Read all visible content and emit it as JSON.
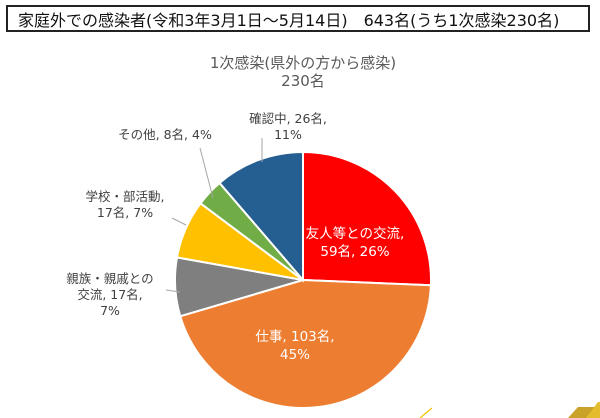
{
  "header": {
    "title": "家庭外での感染者(令和3年3月1日～5月14日)　643名(うち1次感染230名)"
  },
  "chart_data": {
    "type": "pie",
    "title": "1次感染(県外の方から感染)",
    "subtitle": "230名",
    "slices": [
      {
        "name": "友人等との交流",
        "count": 59,
        "percent": 26,
        "color": "#FF0000",
        "label_lines": [
          "友人等との交流,",
          "59名, 26%"
        ]
      },
      {
        "name": "仕事",
        "count": 103,
        "percent": 45,
        "color": "#ED7D31",
        "label_lines": [
          "仕事, 103名,",
          "45%"
        ]
      },
      {
        "name": "親族・親戚との交流",
        "count": 17,
        "percent": 7,
        "color": "#7F7F7F",
        "label_lines": [
          "親族・親戚との",
          "交流, 17名,",
          "7%"
        ]
      },
      {
        "name": "学校・部活動",
        "count": 17,
        "percent": 7,
        "color": "#FFC000",
        "label_lines": [
          "学校・部活動,",
          "17名, 7%"
        ]
      },
      {
        "name": "その他",
        "count": 8,
        "percent": 4,
        "color": "#70AD47",
        "label_lines": [
          "その他, 8名, 4%"
        ]
      },
      {
        "name": "確認中",
        "count": 26,
        "percent": 11,
        "color": "#255E91",
        "label_lines": [
          "確認中, 26名,",
          "11%"
        ]
      }
    ]
  }
}
